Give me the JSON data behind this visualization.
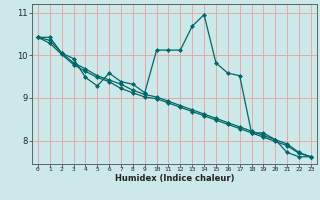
{
  "xlabel": "Humidex (Indice chaleur)",
  "bg_color": "#cce8e8",
  "grid_color": "#e8a0a0",
  "line_color": "#006868",
  "x_values": [
    0,
    1,
    2,
    3,
    4,
    5,
    6,
    7,
    8,
    9,
    10,
    11,
    12,
    13,
    14,
    15,
    16,
    17,
    18,
    19,
    20,
    21,
    22,
    23
  ],
  "y_series1": [
    10.42,
    10.42,
    10.05,
    9.92,
    9.48,
    9.28,
    9.58,
    9.38,
    9.32,
    9.12,
    10.12,
    10.12,
    10.12,
    10.68,
    10.95,
    9.82,
    9.58,
    9.52,
    8.18,
    8.18,
    8.02,
    7.72,
    7.62,
    7.62
  ],
  "y_series2": [
    10.42,
    10.35,
    10.05,
    9.82,
    9.68,
    9.52,
    9.42,
    9.32,
    9.18,
    9.08,
    9.02,
    8.92,
    8.82,
    8.72,
    8.62,
    8.52,
    8.42,
    8.32,
    8.22,
    8.12,
    8.02,
    7.92,
    7.72,
    7.62
  ],
  "y_series3": [
    10.42,
    10.28,
    10.02,
    9.78,
    9.62,
    9.48,
    9.38,
    9.22,
    9.12,
    9.02,
    8.98,
    8.88,
    8.78,
    8.68,
    8.58,
    8.48,
    8.38,
    8.28,
    8.18,
    8.08,
    7.98,
    7.88,
    7.7,
    7.62
  ],
  "ylim": [
    7.45,
    11.2
  ],
  "xlim": [
    -0.5,
    23.5
  ],
  "yticks": [
    8,
    9,
    10,
    11
  ],
  "xticks": [
    0,
    1,
    2,
    3,
    4,
    5,
    6,
    7,
    8,
    9,
    10,
    11,
    12,
    13,
    14,
    15,
    16,
    17,
    18,
    19,
    20,
    21,
    22,
    23
  ]
}
